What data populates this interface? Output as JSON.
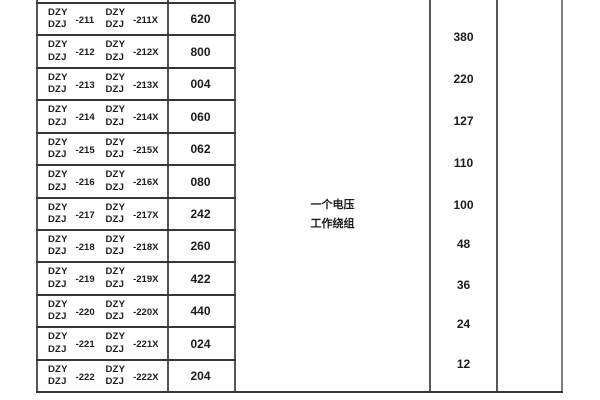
{
  "colors": {
    "line_h": "#363636",
    "line_v": "#565656",
    "line_right": "#7f7f7f",
    "text": "#1c1c1c"
  },
  "table": {
    "rows": [
      {
        "left": {
          "top": "DZY",
          "bottom": "DZJ",
          "suffix": "-211"
        },
        "right": {
          "top": "DZY",
          "bottom": "DZJ",
          "suffix": "-211X"
        },
        "code": "620"
      },
      {
        "left": {
          "top": "DZY",
          "bottom": "DZJ",
          "suffix": "-212"
        },
        "right": {
          "top": "DZY",
          "bottom": "DZJ",
          "suffix": "-212X"
        },
        "code": "800"
      },
      {
        "left": {
          "top": "DZY",
          "bottom": "DZJ",
          "suffix": "-213"
        },
        "right": {
          "top": "DZY",
          "bottom": "DZJ",
          "suffix": "-213X"
        },
        "code": "004"
      },
      {
        "left": {
          "top": "DZY",
          "bottom": "DZJ",
          "suffix": "-214"
        },
        "right": {
          "top": "DZY",
          "bottom": "DZJ",
          "suffix": "-214X"
        },
        "code": "060"
      },
      {
        "left": {
          "top": "DZY",
          "bottom": "DZJ",
          "suffix": "-215"
        },
        "right": {
          "top": "DZY",
          "bottom": "DZJ",
          "suffix": "-215X"
        },
        "code": "062"
      },
      {
        "left": {
          "top": "DZY",
          "bottom": "DZJ",
          "suffix": "-216"
        },
        "right": {
          "top": "DZY",
          "bottom": "DZJ",
          "suffix": "-216X"
        },
        "code": "080"
      },
      {
        "left": {
          "top": "DZY",
          "bottom": "DZJ",
          "suffix": "-217"
        },
        "right": {
          "top": "DZY",
          "bottom": "DZJ",
          "suffix": "-217X"
        },
        "code": "242"
      },
      {
        "left": {
          "top": "DZY",
          "bottom": "DZJ",
          "suffix": "-218"
        },
        "right": {
          "top": "DZY",
          "bottom": "DZJ",
          "suffix": "-218X"
        },
        "code": "260"
      },
      {
        "left": {
          "top": "DZY",
          "bottom": "DZJ",
          "suffix": "-219"
        },
        "right": {
          "top": "DZY",
          "bottom": "DZJ",
          "suffix": "-219X"
        },
        "code": "422"
      },
      {
        "left": {
          "top": "DZY",
          "bottom": "DZJ",
          "suffix": "-220"
        },
        "right": {
          "top": "DZY",
          "bottom": "DZJ",
          "suffix": "-220X"
        },
        "code": "440"
      },
      {
        "left": {
          "top": "DZY",
          "bottom": "DZJ",
          "suffix": "-221"
        },
        "right": {
          "top": "DZY",
          "bottom": "DZJ",
          "suffix": "-221X"
        },
        "code": "024"
      },
      {
        "left": {
          "top": "DZY",
          "bottom": "DZJ",
          "suffix": "-222"
        },
        "right": {
          "top": "DZY",
          "bottom": "DZJ",
          "suffix": "-222X"
        },
        "code": "204"
      }
    ],
    "middle_cell": {
      "line1": "一个电压",
      "line2": "工作绕组"
    },
    "voltages": [
      "380",
      "220",
      "127",
      "110",
      "100",
      "48",
      "36",
      "24",
      "12"
    ]
  }
}
